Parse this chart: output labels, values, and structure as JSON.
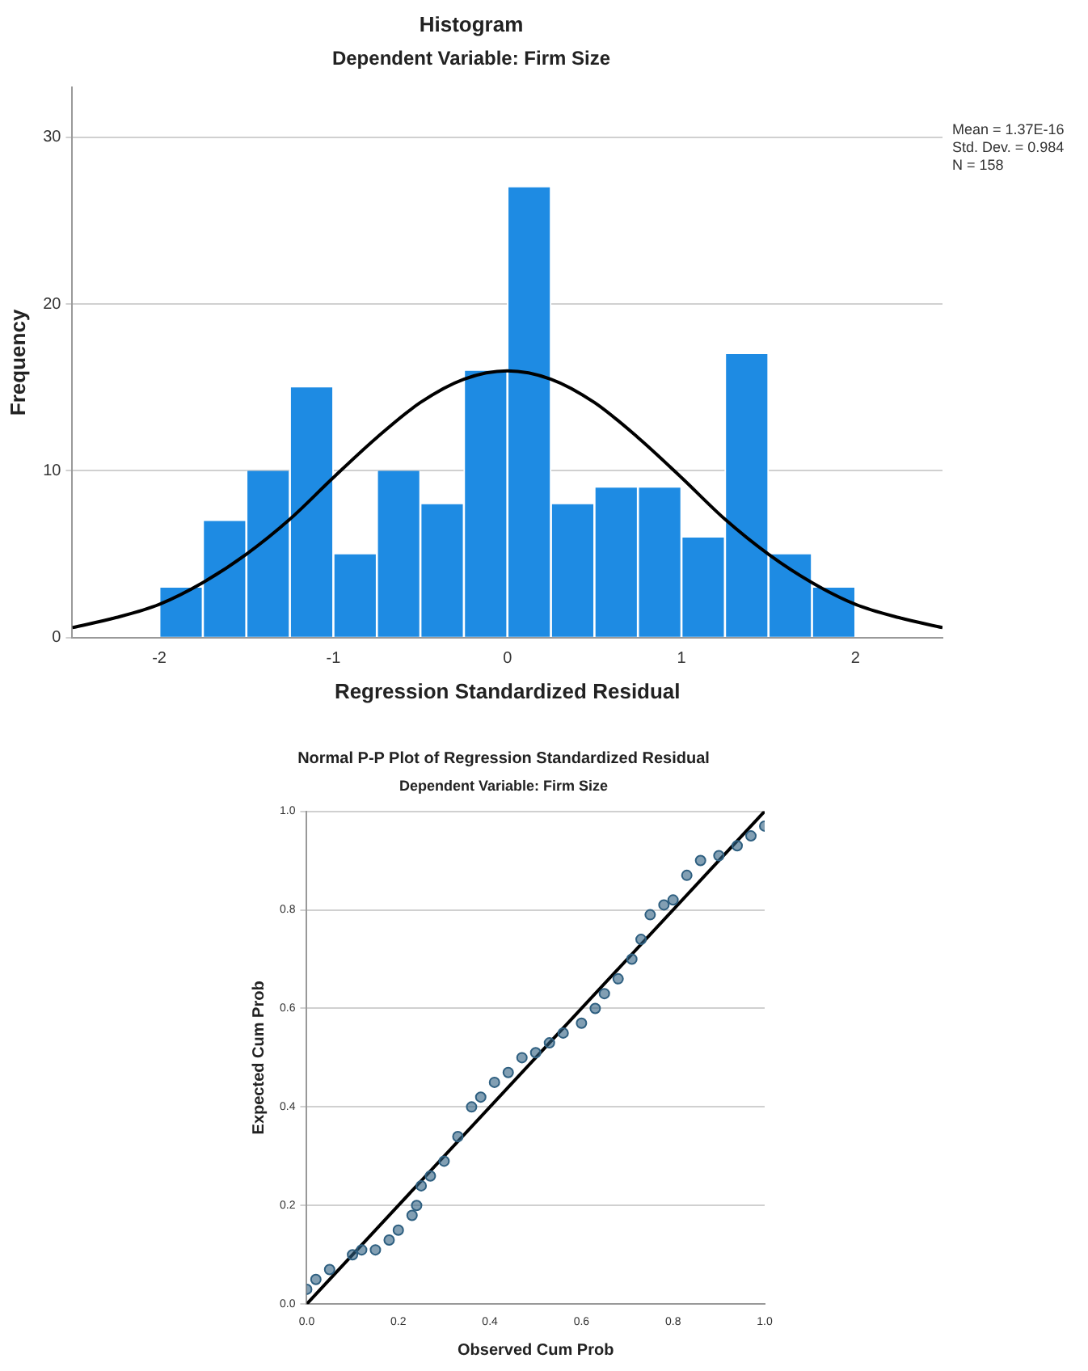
{
  "chart_data": [
    {
      "type": "histogram",
      "title": "Histogram",
      "subtitle": "Dependent Variable: Firm Size",
      "xlabel": "Regression Standardized Residual",
      "ylabel": "Frequency",
      "bins": [
        -2,
        -1.75,
        -1.5,
        -1.25,
        -1,
        -0.75,
        -0.5,
        -0.25,
        0,
        0.25,
        0.5,
        0.75,
        1,
        1.25,
        1.5,
        1.75,
        2
      ],
      "xlim": [
        -2.5,
        2.5
      ],
      "xticks": [
        -2,
        -1,
        0,
        1,
        2
      ],
      "ylim": [
        0,
        33
      ],
      "yticks": [
        0,
        10,
        20,
        30
      ],
      "grid": "y",
      "legend": false,
      "annotations": [
        "Mean = 1.37E-16",
        "Std. Dev. = 0.984",
        "N = 158"
      ],
      "series": [
        {
          "color": "#1e8be3",
          "values": [
            3,
            7,
            10,
            15,
            5,
            10,
            8,
            16,
            27,
            8,
            9,
            9,
            6,
            17,
            5,
            3
          ]
        },
        {
          "type": "line",
          "color": "#000000",
          "marker": "none",
          "x": [
            -2.5,
            -2.25,
            -2,
            -1.75,
            -1.5,
            -1.25,
            -1,
            -0.75,
            -0.5,
            -0.25,
            0,
            0.25,
            0.5,
            0.75,
            1,
            1.25,
            1.5,
            1.75,
            2,
            2.25,
            2.5
          ],
          "values": [
            0.6,
            1.2,
            2.0,
            3.3,
            5.0,
            7.1,
            9.6,
            12.0,
            14.1,
            15.5,
            16.0,
            15.5,
            14.1,
            12.0,
            9.6,
            7.1,
            5.0,
            3.3,
            2.0,
            1.2,
            0.6
          ]
        }
      ]
    },
    {
      "type": "scatter",
      "title": "Normal P-P Plot of Regression Standardized Residual",
      "subtitle": "Dependent Variable: Firm Size",
      "xlabel": "Observed Cum Prob",
      "ylabel": "Expected Cum Prob",
      "xlim": [
        0,
        1
      ],
      "xticks": [
        {
          "value": 0,
          "label": "0.0"
        },
        {
          "value": 0.2,
          "label": "0.2"
        },
        {
          "value": 0.4,
          "label": "0.4"
        },
        {
          "value": 0.6,
          "label": "0.6"
        },
        {
          "value": 0.8,
          "label": "0.8"
        },
        {
          "value": 1,
          "label": "1.0"
        }
      ],
      "ylim": [
        0,
        1
      ],
      "yticks": [
        {
          "value": 0,
          "label": "0.0"
        },
        {
          "value": 0.2,
          "label": "0.2"
        },
        {
          "value": 0.4,
          "label": "0.4"
        },
        {
          "value": 0.6,
          "label": "0.6"
        },
        {
          "value": 0.8,
          "label": "0.8"
        },
        {
          "value": 1,
          "label": "1.0"
        }
      ],
      "grid": "y",
      "legend": false,
      "series": [
        {
          "color": "#2e5f80",
          "marker": "circle",
          "x": [
            0,
            0.02,
            0.05,
            0.1,
            0.12,
            0.15,
            0.18,
            0.2,
            0.23,
            0.24,
            0.25,
            0.27,
            0.3,
            0.33,
            0.36,
            0.38,
            0.41,
            0.44,
            0.47,
            0.5,
            0.53,
            0.56,
            0.6,
            0.63,
            0.65,
            0.68,
            0.71,
            0.73,
            0.75,
            0.78,
            0.8,
            0.83,
            0.86,
            0.9,
            0.94,
            0.97,
            1
          ],
          "values": [
            0.03,
            0.05,
            0.07,
            0.1,
            0.11,
            0.11,
            0.13,
            0.15,
            0.18,
            0.2,
            0.24,
            0.26,
            0.29,
            0.34,
            0.4,
            0.42,
            0.45,
            0.47,
            0.5,
            0.51,
            0.53,
            0.55,
            0.57,
            0.6,
            0.63,
            0.66,
            0.7,
            0.74,
            0.79,
            0.81,
            0.82,
            0.87,
            0.9,
            0.91,
            0.93,
            0.95,
            0.97
          ]
        },
        {
          "type": "line",
          "color": "#000000",
          "marker": "none",
          "x": [
            0,
            1
          ],
          "values": [
            0,
            1
          ]
        }
      ]
    }
  ]
}
